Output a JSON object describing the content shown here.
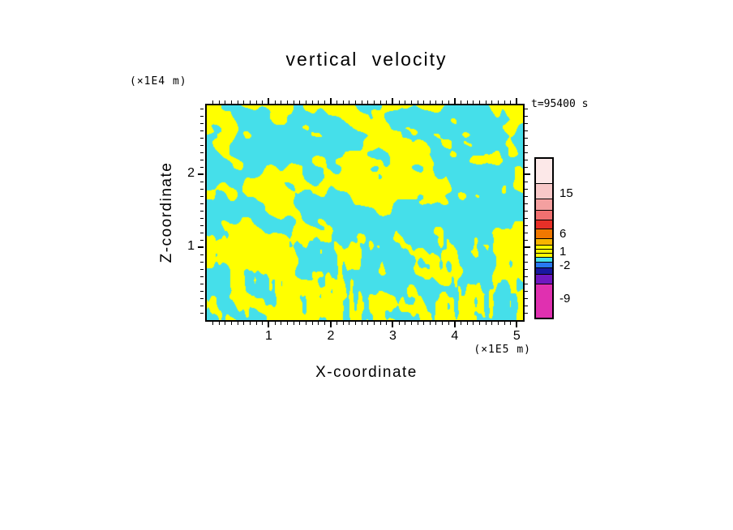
{
  "title": "vertical velocity",
  "time_label": "t=95400 s",
  "axes": {
    "x": {
      "label": "X-coordinate",
      "unit": "(×1E5 m)"
    },
    "z": {
      "label": "Z-coordinate",
      "unit": "(×1E4 m)"
    }
  },
  "chart_data": {
    "type": "heatmap",
    "title": "vertical velocity",
    "time_label": "t=95400 s",
    "xlabel": "X-coordinate",
    "x_unit": "(×1E5 m)",
    "xlim": [
      0,
      5.1
    ],
    "x_major_ticks": [
      1,
      2,
      3,
      4,
      5
    ],
    "x_minor_step": 0.1,
    "ylabel": "Z-coordinate",
    "y_unit": "(×1E4 m)",
    "ylim": [
      0,
      2.95
    ],
    "y_major_ticks": [
      1,
      2
    ],
    "y_minor_step": 0.1,
    "grid": false,
    "legend_position": "right-colorbar",
    "field": {
      "description": "Two-level filled contour field of vertical velocity: turbulent interleaved updraft bands (yellow, values in the 1 to 6 band) and downdraft bands (cyan, values in the -2 to 1 band); diagonal streaks aloft with fine vertical striations near the lower boundary",
      "positive_color": "#FFFF00",
      "negative_color": "#45DFEA",
      "threshold": 0.52,
      "seed": 7.31,
      "coverage_positive_fraction": 0.47
    },
    "colorbar": {
      "tick_values": [
        15,
        6,
        1,
        -2,
        -9
      ],
      "segments_top_to_bottom": [
        {
          "color": "#FCE8E8",
          "h": 30
        },
        {
          "color": "#F8C8C8",
          "h": 19
        },
        {
          "color": "#F4A0A0",
          "h": 14
        },
        {
          "color": "#F07070",
          "h": 12
        },
        {
          "color": "#E83028",
          "h": 11
        },
        {
          "color": "#F07800",
          "h": 12
        },
        {
          "color": "#F8B400",
          "h": 8
        },
        {
          "color": "#FFFF00",
          "h": 5
        },
        {
          "color": "#F4F000",
          "h": 5
        },
        {
          "color": "#FFFF00",
          "h": 5
        },
        {
          "color": "#45DFEA",
          "h": 6
        },
        {
          "color": "#2878F0",
          "h": 7
        },
        {
          "color": "#1818A0",
          "h": 8
        },
        {
          "color": "#7018C0",
          "h": 12
        },
        {
          "color": "#E030B0",
          "h": 42
        }
      ],
      "labels": [
        {
          "text": "15",
          "offset": 43
        },
        {
          "text": "6",
          "offset": 93
        },
        {
          "text": "1",
          "offset": 115
        },
        {
          "text": "-2",
          "offset": 132
        },
        {
          "text": "-9",
          "offset": 173
        }
      ]
    }
  }
}
